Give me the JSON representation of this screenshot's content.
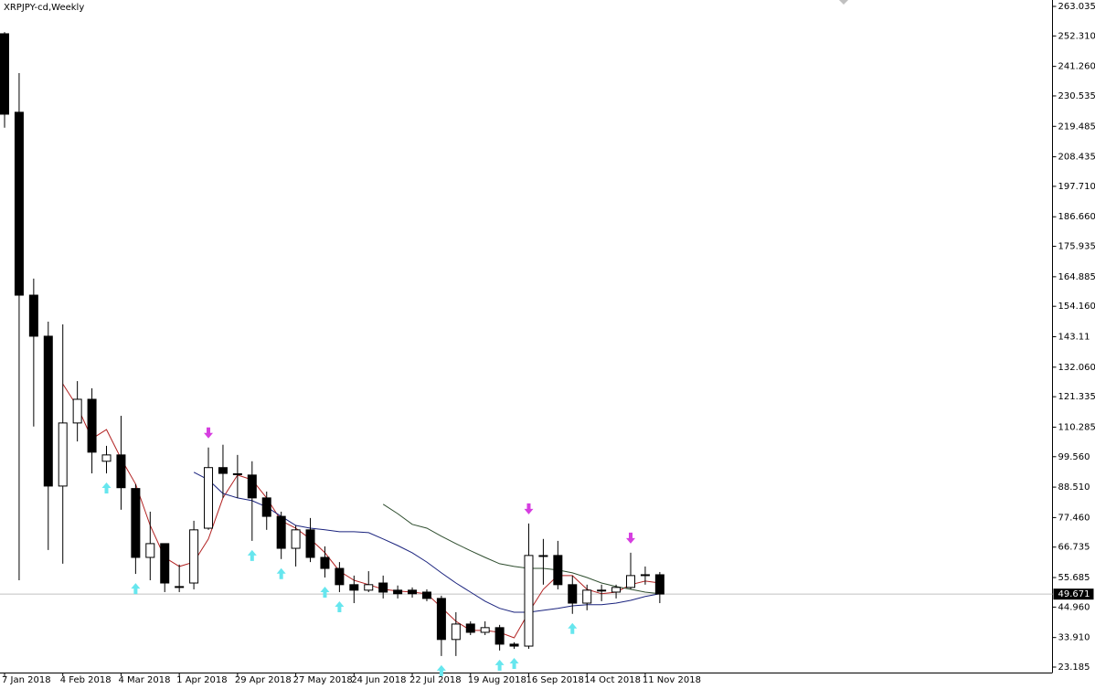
{
  "chart_data": {
    "type": "candlestick",
    "title": "XRPJPY-cd,Weekly",
    "categories": [
      "7 Jan 2018",
      null,
      null,
      null,
      "4 Feb 2018",
      null,
      null,
      null,
      "4 Mar 2018",
      null,
      null,
      null,
      "1 Apr 2018",
      null,
      null,
      null,
      "29 Apr 2018",
      null,
      null,
      null,
      "27 May 2018",
      null,
      null,
      null,
      "24 Jun 2018",
      null,
      null,
      null,
      "22 Jul 2018",
      null,
      null,
      null,
      "19 Aug 2018",
      null,
      null,
      null,
      "16 Sep 2018",
      null,
      null,
      null,
      "14 Oct 2018",
      null,
      null,
      null,
      "11 Nov 2018",
      null
    ],
    "open": [
      253.1,
      224.6,
      158.2,
      143.3,
      88.9,
      111.8,
      120.4,
      97.9,
      100.2,
      88.0,
      63.0,
      68.0,
      52.1,
      53.7,
      73.6,
      95.6,
      93.3,
      92.9,
      84.6,
      77.9,
      66.3,
      73.0,
      63.0,
      59.0,
      53.1,
      51.1,
      53.7,
      51.1,
      51.1,
      50.4,
      48.1,
      33.2,
      38.8,
      35.8,
      37.5,
      31.5,
      30.8,
      63.7,
      63.7,
      53.1,
      46.4,
      51.1,
      50.4,
      52.1,
      56.7,
      56.7
    ],
    "high": [
      253.7,
      238.8,
      164.2,
      148.6,
      147.6,
      127.0,
      124.4,
      103.5,
      114.4,
      89.6,
      79.6,
      68.0,
      60.4,
      76.3,
      102.9,
      103.9,
      100.2,
      97.9,
      86.9,
      79.6,
      74.6,
      77.3,
      67.0,
      61.3,
      56.4,
      58.0,
      56.4,
      52.8,
      52.1,
      51.4,
      49.1,
      43.1,
      39.8,
      39.8,
      38.5,
      32.2,
      75.3,
      69.7,
      69.0,
      56.4,
      53.1,
      53.1,
      53.1,
      64.7,
      59.7,
      57.7
    ],
    "low": [
      219.0,
      54.7,
      110.5,
      65.7,
      60.7,
      105.1,
      93.5,
      93.5,
      80.3,
      57.0,
      54.7,
      50.4,
      50.4,
      51.4,
      73.0,
      84.6,
      84.6,
      69.0,
      73.0,
      62.4,
      59.7,
      61.3,
      55.7,
      50.4,
      46.4,
      50.4,
      48.1,
      48.1,
      48.4,
      47.1,
      27.2,
      27.2,
      34.8,
      34.8,
      29.2,
      29.8,
      29.8,
      53.1,
      51.4,
      42.5,
      43.8,
      47.1,
      48.1,
      51.4,
      53.1,
      46.4
    ],
    "close": [
      223.9,
      158.2,
      143.3,
      88.9,
      111.8,
      120.4,
      101.2,
      100.2,
      88.3,
      63.0,
      68.0,
      53.7,
      52.4,
      73.0,
      95.6,
      93.5,
      93.1,
      84.6,
      77.9,
      66.3,
      73.0,
      63.0,
      59.0,
      53.1,
      51.1,
      53.1,
      50.4,
      49.8,
      49.8,
      48.1,
      33.2,
      38.8,
      35.8,
      37.5,
      31.5,
      30.8,
      63.7,
      63.3,
      53.1,
      46.4,
      51.1,
      50.8,
      52.1,
      56.4,
      56.4,
      49.7
    ],
    "series": [
      {
        "color": "#b22222",
        "values": [
          null,
          null,
          null,
          null,
          126.0,
          117.7,
          106.1,
          109.4,
          98.9,
          89.6,
          74.6,
          63.0,
          59.7,
          61.3,
          69.7,
          84.6,
          92.9,
          91.2,
          84.6,
          76.3,
          73.6,
          69.7,
          64.7,
          58.0,
          54.7,
          53.1,
          51.4,
          50.8,
          50.4,
          49.8,
          44.8,
          39.8,
          36.5,
          36.5,
          35.8,
          33.8,
          43.1,
          51.4,
          56.4,
          56.4,
          51.4,
          49.8,
          50.4,
          53.1,
          54.4,
          53.7
        ]
      },
      {
        "color": "#1a237e",
        "values": [
          null,
          null,
          null,
          null,
          null,
          null,
          null,
          null,
          null,
          null,
          null,
          null,
          null,
          93.9,
          91.2,
          86.2,
          84.6,
          83.6,
          81.3,
          77.9,
          74.6,
          73.6,
          73.0,
          72.3,
          72.3,
          72.0,
          69.7,
          67.3,
          64.7,
          61.3,
          57.4,
          53.7,
          50.4,
          47.1,
          44.5,
          43.1,
          43.1,
          43.8,
          44.5,
          45.4,
          45.8,
          45.8,
          46.4,
          47.4,
          48.8,
          49.8
        ]
      },
      {
        "color": "#2e4d2e",
        "values": [
          null,
          null,
          null,
          null,
          null,
          null,
          null,
          null,
          null,
          null,
          null,
          null,
          null,
          null,
          null,
          null,
          null,
          null,
          null,
          null,
          null,
          null,
          null,
          null,
          null,
          null,
          82.3,
          78.9,
          75.0,
          73.6,
          70.7,
          68.0,
          65.4,
          63.0,
          60.7,
          59.7,
          59.0,
          59.0,
          58.4,
          57.4,
          55.7,
          53.7,
          52.4,
          51.4,
          50.4,
          49.8
        ]
      }
    ],
    "buy_arrows": [
      7,
      9,
      17,
      19,
      22,
      23,
      30,
      34,
      35,
      39
    ],
    "sell_arrows": [
      14,
      36,
      43
    ],
    "buy_color": "#66e6ee",
    "sell_color": "#d63ee0",
    "last_price": 49.671,
    "ylim": [
      23.185,
      263.035
    ],
    "yticks": [
      263.035,
      {
        "value": 252.31,
        "label": "252.310"
      },
      {
        "value": 241.26,
        "label": "241.260"
      },
      230.535,
      219.485,
      208.435,
      {
        "value": 197.71,
        "label": "197.710"
      },
      {
        "value": 186.66,
        "label": "186.660"
      },
      175.935,
      164.885,
      {
        "value": 154.16,
        "label": "154.160"
      },
      143.11,
      {
        "value": 132.06,
        "label": "132.060"
      },
      121.335,
      110.285,
      {
        "value": 99.56,
        "label": "99.560"
      },
      {
        "value": 88.51,
        "label": "88.510"
      },
      {
        "value": 77.46,
        "label": "77.460"
      },
      66.735,
      55.685,
      {
        "value": 44.96,
        "label": "44.960"
      },
      {
        "value": 33.91,
        "label": "33.910"
      },
      23.185
    ]
  }
}
